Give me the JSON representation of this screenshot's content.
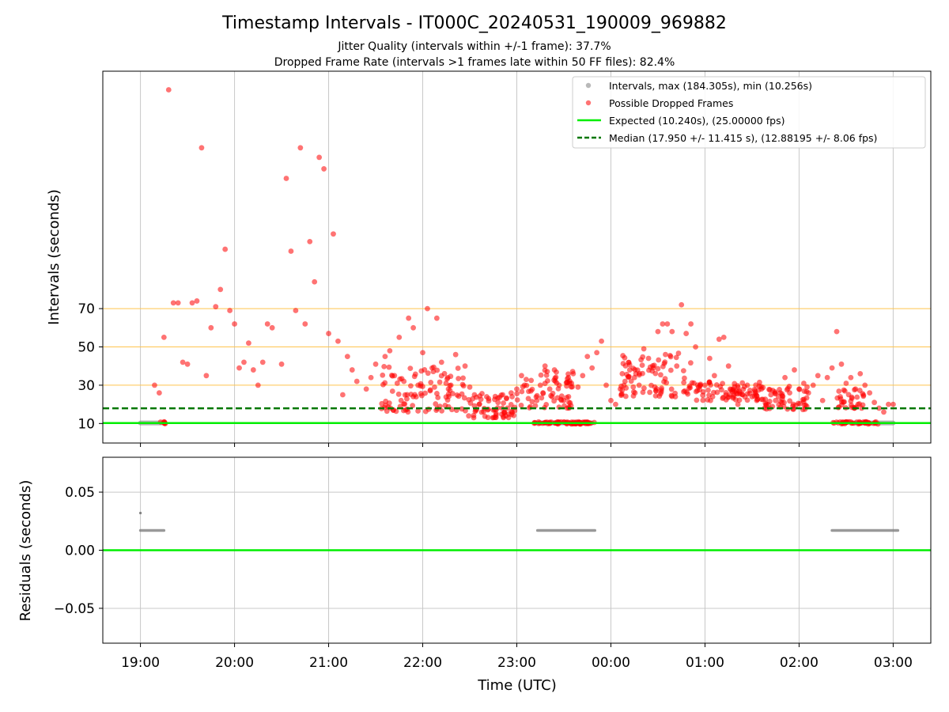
{
  "figure": {
    "title": "Timestamp Intervals - IT000C_20240531_190009_969882",
    "subtitle1": "Jitter Quality (intervals within +/-1 frame): 37.7%",
    "subtitle2": "Dropped Frame Rate (intervals >1 frames late within 50 FF files): 82.4%"
  },
  "chart_data": [
    {
      "type": "scatter",
      "ylabel": "Intervals (seconds)",
      "xlabel": "",
      "x_unit": "hours since 19:00 UTC",
      "xlim": [
        -0.4,
        8.4
      ],
      "ylim": [
        -0.2,
        194
      ],
      "y_ticks": [
        10,
        30,
        50,
        70
      ],
      "y_tick_labels": [
        "10",
        "30",
        "50",
        "70"
      ],
      "grid": true,
      "legend_position": "top-right",
      "reference_lines_orange": [
        10,
        30,
        50,
        70
      ],
      "legend": {
        "intervals": "Intervals, max (184.305s), min (10.256s)",
        "dropped": "Possible Dropped Frames",
        "expected": "Expected (10.240s), (25.00000 fps)",
        "median": "Median (17.950 +/- 11.415 s), (12.88195 +/- 8.06 fps)"
      },
      "expected_interval": 10.24,
      "median_interval": 17.95,
      "series": [
        {
          "name": "Intervals, max (184.305s), min (10.256s)",
          "style": "gray-dots",
          "segments": [
            {
              "x_start": 0.0,
              "x_end": 0.22,
              "y": 10.26
            },
            {
              "x_start": 4.2,
              "x_end": 4.8,
              "y": 10.26
            },
            {
              "x_start": 7.6,
              "x_end": 8.0,
              "y": 10.26
            }
          ]
        },
        {
          "name": "Possible Dropped Frames",
          "style": "red-dots",
          "points": [
            [
              0.3,
              184.3
            ],
            [
              0.15,
              30
            ],
            [
              0.2,
              26
            ],
            [
              0.25,
              55
            ],
            [
              0.35,
              73
            ],
            [
              0.4,
              73
            ],
            [
              0.45,
              42
            ],
            [
              0.5,
              41
            ],
            [
              0.55,
              73
            ],
            [
              0.6,
              74
            ],
            [
              0.65,
              154
            ],
            [
              0.7,
              35
            ],
            [
              0.75,
              60
            ],
            [
              0.8,
              71
            ],
            [
              0.85,
              80
            ],
            [
              0.9,
              101
            ],
            [
              0.95,
              69
            ],
            [
              1.0,
              62
            ],
            [
              1.05,
              39
            ],
            [
              1.1,
              42
            ],
            [
              1.15,
              52
            ],
            [
              1.2,
              38
            ],
            [
              1.25,
              30
            ],
            [
              1.3,
              42
            ],
            [
              1.35,
              62
            ],
            [
              1.4,
              60
            ],
            [
              1.5,
              41
            ],
            [
              1.55,
              138
            ],
            [
              1.6,
              100
            ],
            [
              1.65,
              69
            ],
            [
              1.7,
              154
            ],
            [
              1.75,
              62
            ],
            [
              1.8,
              105
            ],
            [
              1.85,
              84
            ],
            [
              1.9,
              149
            ],
            [
              1.95,
              143
            ],
            [
              2.0,
              57
            ],
            [
              2.05,
              109
            ],
            [
              2.1,
              53
            ],
            [
              2.15,
              25
            ],
            [
              2.2,
              45
            ],
            [
              2.25,
              38
            ],
            [
              2.3,
              32
            ],
            [
              2.4,
              28
            ],
            [
              2.45,
              34
            ],
            [
              2.5,
              41
            ],
            [
              2.6,
              45
            ],
            [
              2.65,
              48
            ],
            [
              2.7,
              35
            ],
            [
              2.75,
              55
            ],
            [
              2.8,
              32
            ],
            [
              2.85,
              65
            ],
            [
              2.9,
              60
            ],
            [
              2.95,
              30
            ],
            [
              3.0,
              47
            ],
            [
              3.05,
              70
            ],
            [
              3.1,
              39
            ],
            [
              3.15,
              65
            ],
            [
              3.2,
              42
            ],
            [
              3.3,
              30
            ],
            [
              3.35,
              46
            ],
            [
              3.45,
              40
            ],
            [
              3.5,
              29
            ],
            [
              3.55,
              25
            ],
            [
              3.6,
              20
            ],
            [
              3.7,
              23
            ],
            [
              3.75,
              17
            ],
            [
              3.8,
              21
            ],
            [
              3.85,
              25
            ],
            [
              3.9,
              18
            ],
            [
              3.95,
              24
            ],
            [
              4.0,
              28
            ],
            [
              4.05,
              35
            ],
            [
              4.1,
              33
            ],
            [
              4.15,
              27
            ],
            [
              4.25,
              30
            ],
            [
              4.3,
              40
            ],
            [
              4.35,
              28
            ],
            [
              4.4,
              38
            ],
            [
              4.45,
              30
            ],
            [
              4.5,
              22
            ],
            [
              4.55,
              24
            ],
            [
              4.6,
              36
            ],
            [
              4.65,
              29
            ],
            [
              4.7,
              35
            ],
            [
              4.75,
              45
            ],
            [
              4.8,
              39
            ],
            [
              4.85,
              47
            ],
            [
              4.9,
              53
            ],
            [
              4.95,
              30
            ],
            [
              5.0,
              22
            ],
            [
              5.05,
              20
            ],
            [
              5.1,
              28
            ],
            [
              5.15,
              32
            ],
            [
              5.2,
              38
            ],
            [
              5.25,
              34
            ],
            [
              5.3,
              30
            ],
            [
              5.35,
              49
            ],
            [
              5.4,
              44
            ],
            [
              5.45,
              39
            ],
            [
              5.5,
              58
            ],
            [
              5.55,
              62
            ],
            [
              5.6,
              62
            ],
            [
              5.65,
              58
            ],
            [
              5.7,
              40
            ],
            [
              5.75,
              72
            ],
            [
              5.8,
              57
            ],
            [
              5.85,
              62
            ],
            [
              5.9,
              50
            ],
            [
              5.95,
              30
            ],
            [
              6.0,
              30
            ],
            [
              6.05,
              44
            ],
            [
              6.1,
              35
            ],
            [
              6.15,
              54
            ],
            [
              6.2,
              55
            ],
            [
              6.25,
              40
            ],
            [
              6.3,
              28
            ],
            [
              6.35,
              20
            ],
            [
              6.4,
              25
            ],
            [
              6.45,
              30
            ],
            [
              6.5,
              24
            ],
            [
              6.55,
              22
            ],
            [
              6.6,
              28
            ],
            [
              6.65,
              20
            ],
            [
              6.7,
              25
            ],
            [
              6.75,
              22
            ],
            [
              6.8,
              26
            ],
            [
              6.85,
              34
            ],
            [
              6.9,
              26
            ],
            [
              6.95,
              38
            ],
            [
              7.0,
              28
            ],
            [
              7.05,
              31
            ],
            [
              7.1,
              26
            ],
            [
              7.15,
              30
            ],
            [
              7.2,
              35
            ],
            [
              7.25,
              22
            ],
            [
              7.3,
              34
            ],
            [
              7.35,
              39
            ],
            [
              7.4,
              58
            ],
            [
              7.45,
              41
            ],
            [
              7.5,
              31
            ],
            [
              7.55,
              34
            ],
            [
              7.6,
              28
            ],
            [
              7.65,
              36
            ],
            [
              7.7,
              30
            ],
            [
              7.75,
              26
            ],
            [
              7.8,
              21
            ],
            [
              7.85,
              18
            ],
            [
              7.9,
              16
            ],
            [
              7.95,
              20
            ],
            [
              8.0,
              20
            ]
          ],
          "dense_clusters": [
            {
              "x_start": 2.55,
              "x_end": 3.45,
              "y_min": 16,
              "y_max": 40
            },
            {
              "x_start": 3.45,
              "x_end": 4.0,
              "y_min": 13,
              "y_max": 26
            },
            {
              "x_start": 4.0,
              "x_end": 4.6,
              "y_min": 18,
              "y_max": 38
            },
            {
              "x_start": 5.1,
              "x_end": 5.9,
              "y_min": 24,
              "y_max": 48
            },
            {
              "x_start": 5.9,
              "x_end": 6.6,
              "y_min": 22,
              "y_max": 32
            },
            {
              "x_start": 6.6,
              "x_end": 7.1,
              "y_min": 17,
              "y_max": 30
            },
            {
              "x_start": 7.4,
              "x_end": 7.7,
              "y_min": 18,
              "y_max": 28
            }
          ],
          "baseline_clusters": [
            {
              "x_start": 0.2,
              "x_end": 0.28,
              "y": 10.3
            },
            {
              "x_start": 4.18,
              "x_end": 4.78,
              "y": 10.3
            },
            {
              "x_start": 4.6,
              "x_end": 4.83,
              "y": 10.3
            },
            {
              "x_start": 7.35,
              "x_end": 7.85,
              "y": 10.3
            }
          ]
        }
      ]
    },
    {
      "type": "scatter",
      "ylabel": "Residuals (seconds)",
      "xlabel": "Time (UTC)",
      "xlim": [
        -0.4,
        8.4
      ],
      "ylim": [
        -0.08,
        0.08
      ],
      "y_ticks": [
        -0.05,
        0.0,
        0.05
      ],
      "y_tick_labels": [
        "−0.05",
        "0.00",
        "0.05"
      ],
      "x_ticks": [
        0,
        1,
        2,
        3,
        4,
        5,
        6,
        7,
        8
      ],
      "x_tick_labels": [
        "19:00",
        "20:00",
        "21:00",
        "22:00",
        "23:00",
        "00:00",
        "01:00",
        "02:00",
        "03:00"
      ],
      "grid": true,
      "zero_line": 0.0,
      "series": [
        {
          "name": "",
          "style": "gray-dots",
          "outliers": [
            [
              0.0,
              0.032
            ]
          ],
          "segments": [
            {
              "x_start": 0.0,
              "x_end": 0.25,
              "y": 0.017
            },
            {
              "x_start": 4.22,
              "x_end": 4.83,
              "y": 0.017
            },
            {
              "x_start": 7.35,
              "x_end": 8.05,
              "y": 0.017
            }
          ]
        }
      ]
    }
  ],
  "colors": {
    "dropped": "#ff0000",
    "intervals": "#808080",
    "expected": "#00ee00",
    "median": "#007700",
    "ref_lines": "#ffc44d",
    "grid": "#c8c8c8"
  }
}
